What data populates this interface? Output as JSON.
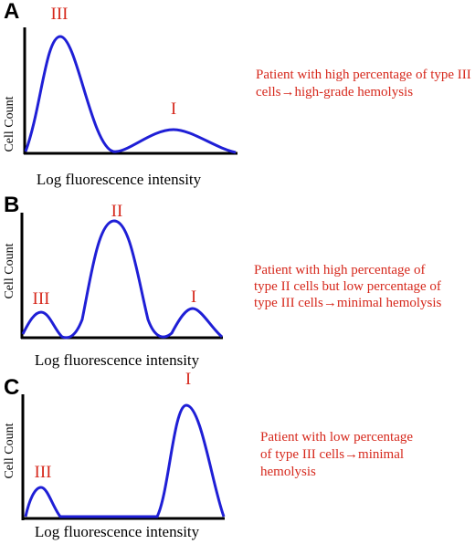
{
  "colors": {
    "curve": "#1f1fd6",
    "peak_label": "#d6281c",
    "note": "#d6281c",
    "axis": "#000000"
  },
  "panels": [
    {
      "letter": "A",
      "xlabel": "Log fluorescence intensity",
      "ylabel": "Cell Count",
      "peaks": {
        "p1": "III",
        "p2": "I"
      },
      "note": {
        "line1": "Patient with high percentage of type III",
        "line2": "cells",
        "line3": "high-grade hemolysis"
      }
    },
    {
      "letter": "B",
      "xlabel": "Log fluorescence intensity",
      "ylabel": "Cell Count",
      "peaks": {
        "p1": "III",
        "p2": "II",
        "p3": "I"
      },
      "note": {
        "line1": "Patient with high percentage of",
        "line2": "type II cells but low percentage of",
        "line3a": "type III cells",
        "line3b": "minimal hemolysis"
      }
    },
    {
      "letter": "C",
      "xlabel": "Log fluorescence intensity",
      "ylabel": "Cell Count",
      "peaks": {
        "p1": "III",
        "p2": "I"
      },
      "note": {
        "line1": "Patient with low percentage",
        "line2a": "of type III cells",
        "line2b": "minimal",
        "line3": "hemolysis"
      }
    }
  ],
  "arrow_symbol": "→"
}
